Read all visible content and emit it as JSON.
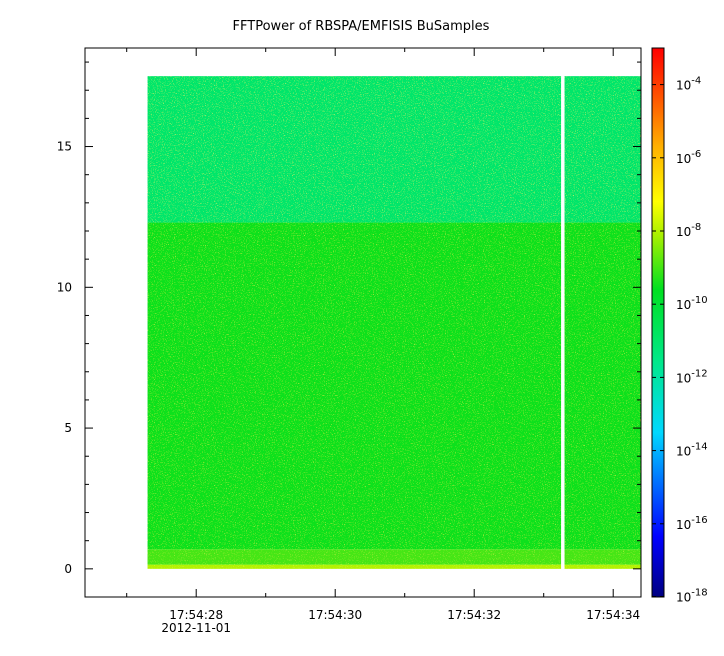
{
  "chart_data": {
    "type": "heatmap",
    "title": "FFTPower of RBSPA/EMFISIS  BuSamples",
    "xlabel": "",
    "ylabel": "",
    "x_start_seconds": "17:54:27.3",
    "x_end_seconds": "17:54:34.4",
    "xlim": [
      "17:54:26.4",
      "17:54:34.4"
    ],
    "ylim": [
      -1.0,
      18.5
    ],
    "x_ticks": [
      {
        "label": "17:54:28",
        "sublabel": "2012-11-01",
        "time": "17:54:28"
      },
      {
        "label": "17:54:30",
        "sublabel": "",
        "time": "17:54:30"
      },
      {
        "label": "17:54:32",
        "sublabel": "",
        "time": "17:54:32"
      },
      {
        "label": "17:54:34",
        "sublabel": "",
        "time": "17:54:34"
      }
    ],
    "x_minor_ticks": [
      "17:54:27",
      "17:54:29",
      "17:54:31",
      "17:54:33"
    ],
    "y_ticks": [
      0,
      5,
      10,
      15
    ],
    "data_gap": {
      "from": "17:54:33.25",
      "to": "17:54:33.30"
    },
    "frequency_bands": [
      {
        "from": 0.0,
        "to": 0.15,
        "power": 1e-08
      },
      {
        "from": 0.15,
        "to": 0.7,
        "power": 1e-09
      },
      {
        "from": 0.7,
        "to": 12.3,
        "power": 3e-10
      },
      {
        "from": 12.3,
        "to": 17.5,
        "power": 1e-11
      }
    ],
    "colorbar": {
      "scale": "log",
      "min": 1e-18,
      "max": 0.001,
      "ticks": [
        {
          "base": "10",
          "exp": "-4",
          "value": -4
        },
        {
          "base": "10",
          "exp": "-6",
          "value": -6
        },
        {
          "base": "10",
          "exp": "-8",
          "value": -8
        },
        {
          "base": "10",
          "exp": "-10",
          "value": -10
        },
        {
          "base": "10",
          "exp": "-12",
          "value": -12
        },
        {
          "base": "10",
          "exp": "-14",
          "value": -14
        },
        {
          "base": "10",
          "exp": "-16",
          "value": -16
        },
        {
          "base": "10",
          "exp": "-18",
          "value": -18
        }
      ]
    },
    "grid": false
  }
}
